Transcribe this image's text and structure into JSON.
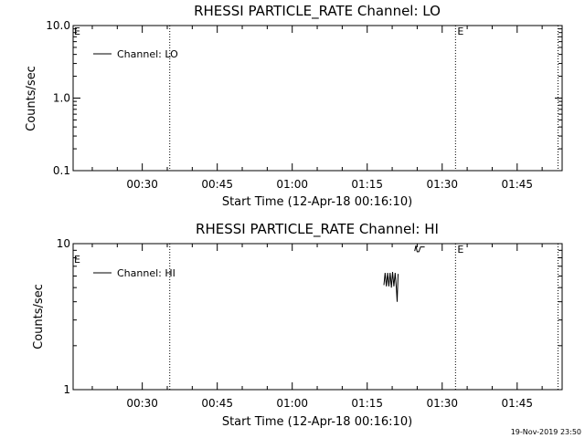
{
  "footer_timestamp": "19-Nov-2019 23:50",
  "chart_data": [
    {
      "type": "line",
      "title": "RHESSI PARTICLE_RATE Channel: LO",
      "xlabel": "Start Time (12-Apr-18 00:16:10)",
      "ylabel": "Counts/sec",
      "y_scale": "log",
      "ylim": [
        0.1,
        10.0
      ],
      "y_ticks": [
        0.1,
        1.0,
        10.0
      ],
      "y_tick_labels": [
        "0.1",
        "1.0",
        "10.0"
      ],
      "xlim": [
        "00:16:10",
        "01:54:00"
      ],
      "x_ticks": [
        "00:30",
        "00:45",
        "01:00",
        "01:15",
        "01:30",
        "01:45"
      ],
      "grid": false,
      "legend_position": "top-left",
      "series": [
        {
          "name": "Channel: LO",
          "points": []
        }
      ],
      "vertical_markers": [
        {
          "time": "00:35:30",
          "label": ""
        },
        {
          "time": "01:32:40",
          "label": "E"
        },
        {
          "time": "01:53:10",
          "label": ""
        }
      ],
      "corner_label": "E"
    },
    {
      "type": "line",
      "title": "RHESSI PARTICLE_RATE Channel: HI",
      "xlabel": "Start Time (12-Apr-18 00:16:10)",
      "ylabel": "Counts/sec",
      "y_scale": "log",
      "ylim": [
        1,
        10
      ],
      "y_ticks": [
        1,
        10
      ],
      "y_tick_labels": [
        "1",
        "10"
      ],
      "xlim": [
        "00:16:10",
        "01:54:00"
      ],
      "x_ticks": [
        "00:30",
        "00:45",
        "01:00",
        "01:15",
        "01:30",
        "01:45"
      ],
      "grid": false,
      "legend_position": "top-left",
      "series": [
        {
          "name": "Channel: HI",
          "segments": [
            [
              [
                "01:18:20",
                5.2
              ],
              [
                "01:18:35",
                6.3
              ],
              [
                "01:18:50",
                5.1
              ],
              [
                "01:19:05",
                6.3
              ],
              [
                "01:19:20",
                5.1
              ],
              [
                "01:19:35",
                6.3
              ],
              [
                "01:19:50",
                5.0
              ],
              [
                "01:20:05",
                6.4
              ],
              [
                "01:20:20",
                5.1
              ],
              [
                "01:20:35",
                6.3
              ],
              [
                "01:20:50",
                5.0
              ],
              [
                "01:21:00",
                4.0
              ],
              [
                "01:21:10",
                6.2
              ]
            ],
            [
              [
                "01:24:30",
                8.9
              ],
              [
                "01:24:45",
                9.7
              ],
              [
                "01:25:00",
                8.8
              ],
              [
                "01:25:20",
                8.8
              ],
              [
                "01:25:40",
                9.5
              ],
              [
                "01:26:30",
                9.5
              ]
            ]
          ]
        }
      ],
      "vertical_markers": [
        {
          "time": "00:35:30",
          "label": ""
        },
        {
          "time": "01:32:40",
          "label": "E"
        },
        {
          "time": "01:53:10",
          "label": ""
        }
      ],
      "corner_label": "E"
    }
  ]
}
